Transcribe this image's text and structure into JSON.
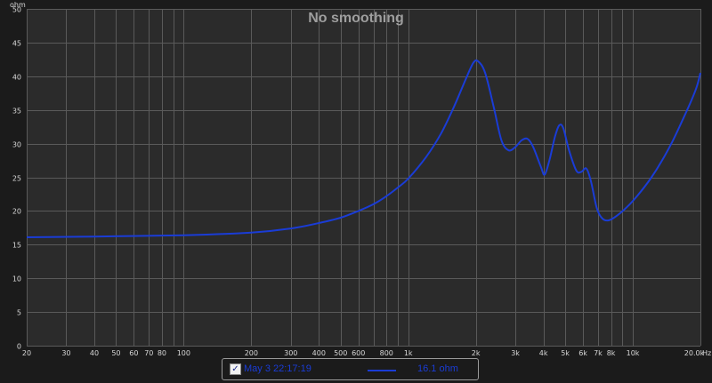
{
  "chart_data": {
    "type": "line",
    "title": "No smoothing",
    "ylabel": "ohm",
    "xlabel": "Hz",
    "x_scale": "log",
    "xlim": [
      20,
      20000
    ],
    "ylim": [
      0,
      50
    ],
    "grid": true,
    "y_ticks": [
      "0",
      "5",
      "10",
      "15",
      "20",
      "25",
      "30",
      "35",
      "40",
      "45",
      "50"
    ],
    "x_ticks": [
      {
        "value": 20,
        "label": "20"
      },
      {
        "value": 30,
        "label": "30"
      },
      {
        "value": 40,
        "label": "40"
      },
      {
        "value": 50,
        "label": "50"
      },
      {
        "value": 60,
        "label": "60"
      },
      {
        "value": 70,
        "label": "70"
      },
      {
        "value": 80,
        "label": "80"
      },
      {
        "value": 100,
        "label": "100"
      },
      {
        "value": 200,
        "label": "200"
      },
      {
        "value": 300,
        "label": "300"
      },
      {
        "value": 400,
        "label": "400"
      },
      {
        "value": 500,
        "label": "500"
      },
      {
        "value": 600,
        "label": "600"
      },
      {
        "value": 800,
        "label": "800"
      },
      {
        "value": 1000,
        "label": "1k"
      },
      {
        "value": 2000,
        "label": "2k"
      },
      {
        "value": 3000,
        "label": "3k"
      },
      {
        "value": 4000,
        "label": "4k"
      },
      {
        "value": 5000,
        "label": "5k"
      },
      {
        "value": 6000,
        "label": "6k"
      },
      {
        "value": 7000,
        "label": "7k"
      },
      {
        "value": 8000,
        "label": "8k"
      },
      {
        "value": 10000,
        "label": "10k"
      },
      {
        "value": 20000,
        "label": "20.0k"
      }
    ],
    "series": [
      {
        "name": "May 3 22:17:19",
        "color": "#1a3cd6",
        "points": [
          [
            20,
            16.1
          ],
          [
            40,
            16.2
          ],
          [
            100,
            16.4
          ],
          [
            200,
            16.8
          ],
          [
            300,
            17.4
          ],
          [
            400,
            18.2
          ],
          [
            500,
            19.0
          ],
          [
            600,
            20.0
          ],
          [
            700,
            21.0
          ],
          [
            800,
            22.2
          ],
          [
            900,
            23.5
          ],
          [
            1000,
            24.8
          ],
          [
            1200,
            28.0
          ],
          [
            1400,
            31.5
          ],
          [
            1600,
            35.5
          ],
          [
            1800,
            39.5
          ],
          [
            1950,
            42.0
          ],
          [
            2050,
            42.2
          ],
          [
            2200,
            40.5
          ],
          [
            2400,
            35.5
          ],
          [
            2600,
            30.5
          ],
          [
            2800,
            29.0
          ],
          [
            3000,
            29.5
          ],
          [
            3200,
            30.5
          ],
          [
            3400,
            30.7
          ],
          [
            3600,
            29.5
          ],
          [
            3900,
            26.5
          ],
          [
            4050,
            25.4
          ],
          [
            4250,
            27.5
          ],
          [
            4500,
            31.0
          ],
          [
            4700,
            32.7
          ],
          [
            4900,
            32.3
          ],
          [
            5200,
            29.0
          ],
          [
            5600,
            26.0
          ],
          [
            5900,
            25.8
          ],
          [
            6200,
            26.3
          ],
          [
            6500,
            24.5
          ],
          [
            6900,
            20.5
          ],
          [
            7300,
            18.9
          ],
          [
            7800,
            18.6
          ],
          [
            8500,
            19.3
          ],
          [
            9500,
            20.7
          ],
          [
            10500,
            22.3
          ],
          [
            12000,
            24.8
          ],
          [
            13500,
            27.5
          ],
          [
            15000,
            30.3
          ],
          [
            16500,
            33.2
          ],
          [
            18000,
            36.0
          ],
          [
            19200,
            38.3
          ],
          [
            20000,
            40.5
          ]
        ]
      }
    ]
  },
  "legend": {
    "checkbox_mark": "✓",
    "label": "May 3 22:17:19",
    "value": "16.1 ohm"
  },
  "colors": {
    "background": "#1b1b1b",
    "plot_background": "#2b2b2b",
    "grid": "#5a5a5a",
    "axis_text": "#d8d8d8",
    "title": "#9e9e9e",
    "series": "#1a3cd6"
  }
}
